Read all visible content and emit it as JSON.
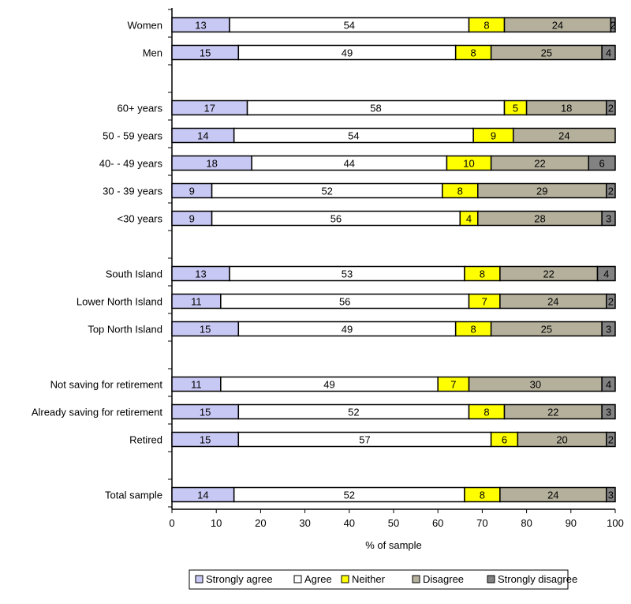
{
  "chart_data": {
    "type": "bar",
    "orientation": "horizontal",
    "stacked": true,
    "xlabel": "% of sample",
    "xlim": [
      0,
      100
    ],
    "xticks": [
      0,
      10,
      20,
      30,
      40,
      50,
      60,
      70,
      80,
      90,
      100
    ],
    "legend_position": "bottom",
    "series": [
      {
        "name": "Strongly agree",
        "color": "#c8c8f4"
      },
      {
        "name": "Agree",
        "color": "#ffffff"
      },
      {
        "name": "Neither",
        "color": "#ffff00"
      },
      {
        "name": "Disagree",
        "color": "#b4b09c"
      },
      {
        "name": "Strongly disagree",
        "color": "#828282"
      }
    ],
    "rows": [
      {
        "label": "Women",
        "values": [
          13,
          54,
          8,
          24,
          2
        ]
      },
      {
        "label": "Men",
        "values": [
          15,
          49,
          8,
          25,
          4
        ]
      },
      null,
      {
        "label": "60+ years",
        "values": [
          17,
          58,
          5,
          18,
          2
        ]
      },
      {
        "label": "50 - 59 years",
        "values": [
          14,
          54,
          9,
          24,
          null
        ]
      },
      {
        "label": "40- - 49 years",
        "values": [
          18,
          44,
          10,
          22,
          6
        ]
      },
      {
        "label": "30 - 39 years",
        "values": [
          9,
          52,
          8,
          29,
          2
        ]
      },
      {
        "label": "<30 years",
        "values": [
          9,
          56,
          4,
          28,
          3
        ]
      },
      null,
      {
        "label": "South Island",
        "values": [
          13,
          53,
          8,
          22,
          4
        ]
      },
      {
        "label": "Lower North Island",
        "values": [
          11,
          56,
          7,
          24,
          2
        ]
      },
      {
        "label": "Top North Island",
        "values": [
          15,
          49,
          8,
          25,
          3
        ]
      },
      null,
      {
        "label": "Not saving for retirement",
        "values": [
          11,
          49,
          7,
          30,
          4
        ]
      },
      {
        "label": "Already saving for retirement",
        "values": [
          15,
          52,
          8,
          22,
          3
        ]
      },
      {
        "label": "Retired",
        "values": [
          15,
          57,
          6,
          20,
          2
        ]
      },
      null,
      {
        "label": "Total sample",
        "values": [
          14,
          52,
          8,
          24,
          3
        ]
      }
    ]
  }
}
